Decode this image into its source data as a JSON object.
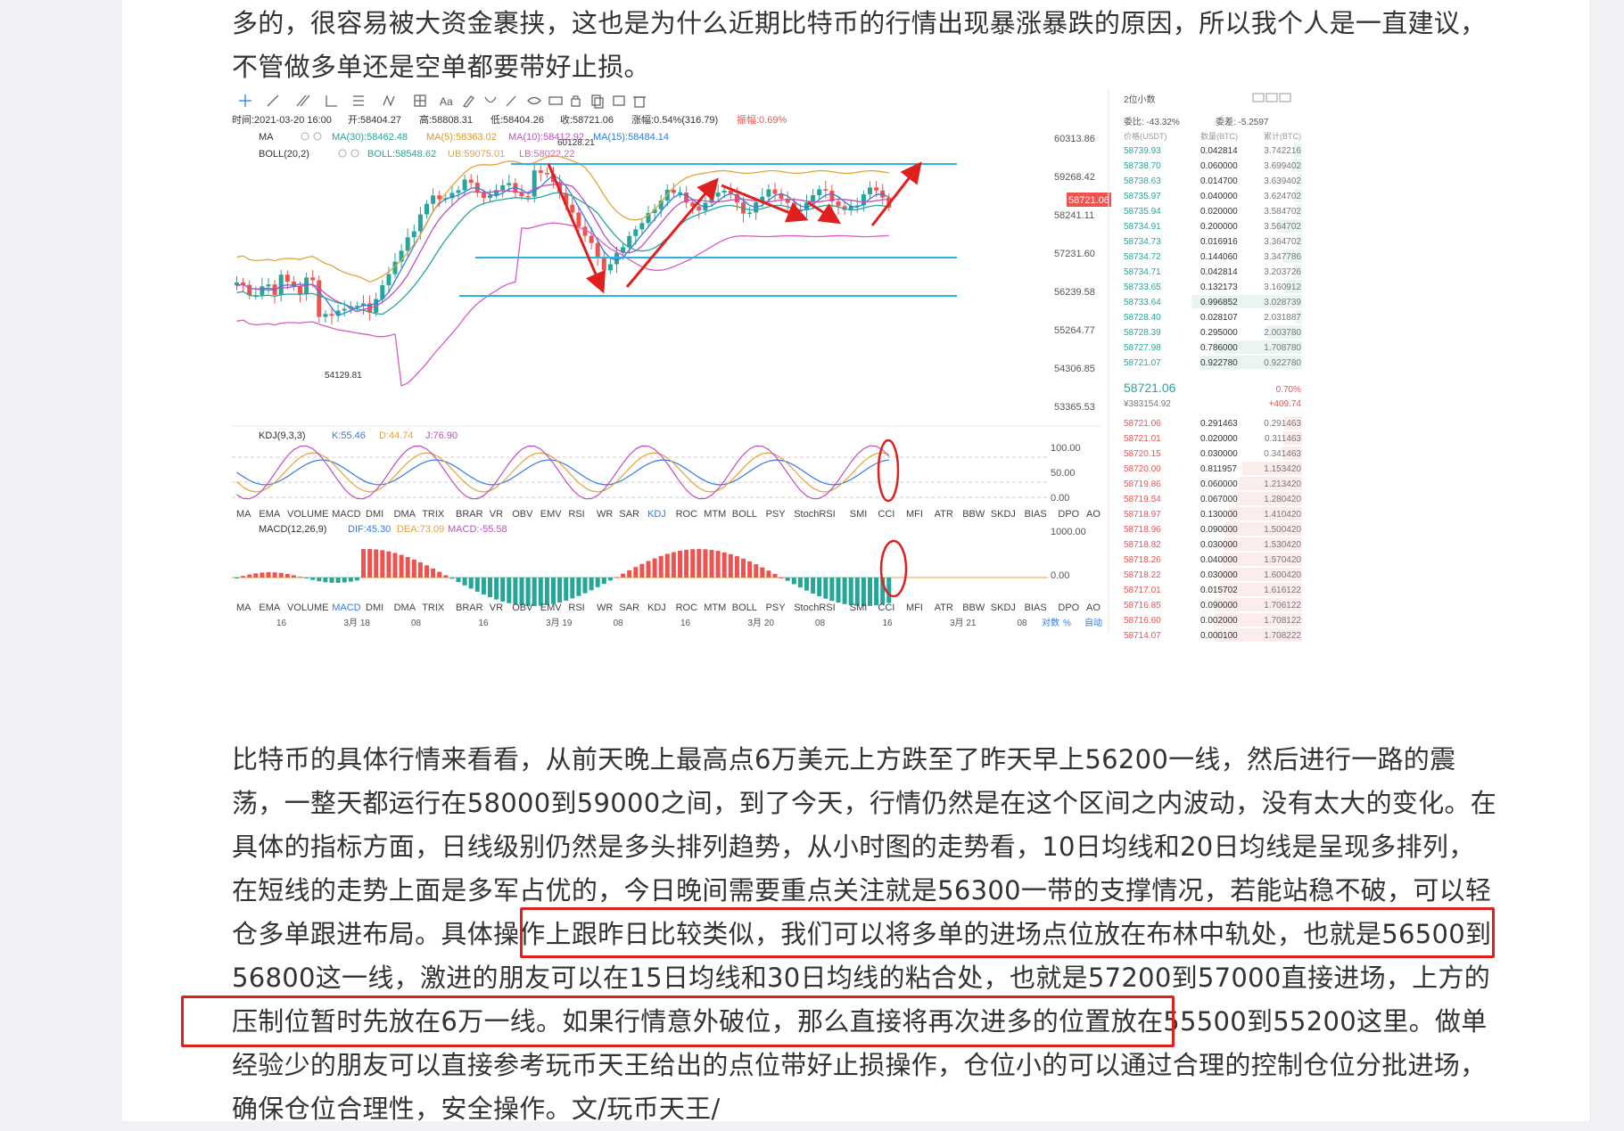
{
  "article": {
    "para1": "多的，很容易被大资金裹挟，这也是为什么近期比特币的行情出现暴涨暴跌的原因，所以我个人是一直建议，不管做多单还是空单都要带好止损。",
    "para2": "比特币的具体行情来看看，从前天晚上最高点6万美元上方跌至了昨天早上56200一线，然后进行一路的震荡，一整天都运行在58000到59000之间，到了今天，行情仍然是在这个区间之内波动，没有太大的变化。在具体的指标方面，日线级别仍然是多头排列趋势，从小时图的走势看，10日均线和20日均线是呈现多排列，在短线的走势上面是多军占优的，今日晚间需要重点关注就是56300一带的支撑情况，若能站稳不破，可以轻仓多单跟进布局。具体操作上跟昨日比较类似，我们可以将多单的进场点位放在布林中轨处，也就是56500到56800这一线，激进的朋友可以在15日均线和30日均线的粘合处，也就是57200到57000直接进场，上方的压制位暂时先放在6万一线。如果行情意外破位，那么直接将再次进多的位置放在55500到55200这里。做单经验少的朋友可以直接参考玩币天王给出的点位带好止损操作，仓位小的可以通过合理的控制仓位分批进场，确保仓位合理性，安全操作。文/玩币天王/"
  },
  "chart": {
    "toolbar_text": "Aa",
    "info_time": "时间:2021-03-20 16:00",
    "info_open": "开:58404.27",
    "info_high": "高:58808.31",
    "info_low": "低:58404.26",
    "info_close": "收:58721.06",
    "info_change": "涨幅:0.54%(316.79)",
    "info_amp": "振幅:0.69%",
    "ma_label": "MA",
    "ma30": "MA(30):58462.48",
    "ma5": "MA(5):58363.02",
    "ma10": "MA(10):58412.92",
    "ma15": "MA(15):58484.14",
    "boll_label": "BOLL(20,2)",
    "boll": "BOLL:58548.62",
    "ub": "UB:59075.01",
    "lb": "LB:58022.22",
    "high_mark": "60128.21",
    "low_mark": "54129.81",
    "price_axis": [
      "60313.86",
      "59268.42",
      "58241.11",
      "57231.60",
      "56239.58",
      "55264.77",
      "54306.85",
      "53365.53"
    ],
    "last_price": "58721.06",
    "kdj_label": "KDJ(9,3,3)",
    "kdj_k": "K:55.46",
    "kdj_d": "D:44.74",
    "kdj_j": "J:76.90",
    "kdj_axis": [
      "100.00",
      "50.00",
      "0.00"
    ],
    "macd_label": "MACD(12,26,9)",
    "macd_dif": "DIF:45.30",
    "macd_dea": "DEA:73.09",
    "macd_val": "MACD:-55.58",
    "macd_axis": [
      "1000.00",
      "0.00"
    ],
    "indicators": [
      "MA",
      "EMA",
      "VOLUME",
      "MACD",
      "DMI",
      "DMA",
      "TRIX",
      "BRAR",
      "VR",
      "OBV",
      "EMV",
      "RSI",
      "WR",
      "SAR",
      "KDJ",
      "ROC",
      "MTM",
      "BOLL",
      "PSY",
      "StochRSI",
      "SMI",
      "CCI",
      "MFI",
      "ATR",
      "BBW",
      "SKDJ",
      "BIAS",
      "DPO",
      "AO"
    ],
    "time_axis": [
      "16",
      "3月 18",
      "08",
      "16",
      "3月 19",
      "08",
      "16",
      "3月 20",
      "08",
      "16",
      "3月 21",
      "08"
    ],
    "axis_opts": [
      "对数",
      "%",
      "自动"
    ],
    "colors": {
      "up": "#26a69a",
      "down": "#ef5350",
      "blue": "#2f7ce6",
      "annot": "#e0201e"
    }
  },
  "orderbook": {
    "decimals": "2位小数",
    "ratio": "委比: -43.32%",
    "diff": "委差: -5.2597",
    "headers": [
      "价格(USDT)",
      "数量(BTC)",
      "累计(BTC)"
    ],
    "asks": [
      [
        "58739.93",
        "0.042814",
        "3.742216"
      ],
      [
        "58738.70",
        "0.060000",
        "3.699402"
      ],
      [
        "58738.63",
        "0.014700",
        "3.639402"
      ],
      [
        "58735.97",
        "0.040000",
        "3.624702"
      ],
      [
        "58735.94",
        "0.020000",
        "3.584702"
      ],
      [
        "58734.91",
        "0.200000",
        "3.564702"
      ],
      [
        "58734.73",
        "0.016916",
        "3.364702"
      ],
      [
        "58734.72",
        "0.144060",
        "3.347786"
      ],
      [
        "58734.71",
        "0.042814",
        "3.203726"
      ],
      [
        "58733.65",
        "0.132173",
        "3.160912"
      ],
      [
        "58733.64",
        "0.996852",
        "3.028739"
      ],
      [
        "58728.40",
        "0.028107",
        "2.031887"
      ],
      [
        "58728.39",
        "0.295000",
        "2.003780"
      ],
      [
        "58727.98",
        "0.786000",
        "1.708780"
      ],
      [
        "58721.07",
        "0.922780",
        "0.922780"
      ]
    ],
    "last": "58721.06",
    "last_pct": "0.70%",
    "last_cny": "¥383154.92",
    "last_change": "+409.74",
    "bids": [
      [
        "58721.06",
        "0.291463",
        "0.291463"
      ],
      [
        "58721.01",
        "0.020000",
        "0.311463"
      ],
      [
        "58720.15",
        "0.030000",
        "0.341463"
      ],
      [
        "58720.00",
        "0.811957",
        "1.153420"
      ],
      [
        "58719.86",
        "0.060000",
        "1.213420"
      ],
      [
        "58719.54",
        "0.067000",
        "1.280420"
      ],
      [
        "58718.97",
        "0.130000",
        "1.410420"
      ],
      [
        "58718.96",
        "0.090000",
        "1.500420"
      ],
      [
        "58718.82",
        "0.030000",
        "1.530420"
      ],
      [
        "58718.26",
        "0.040000",
        "1.570420"
      ],
      [
        "58718.22",
        "0.030000",
        "1.600420"
      ],
      [
        "58717.01",
        "0.015702",
        "1.616122"
      ],
      [
        "58716.85",
        "0.090000",
        "1.706122"
      ],
      [
        "58716.60",
        "0.002000",
        "1.708122"
      ],
      [
        "58714.07",
        "0.000100",
        "1.708222"
      ]
    ]
  }
}
